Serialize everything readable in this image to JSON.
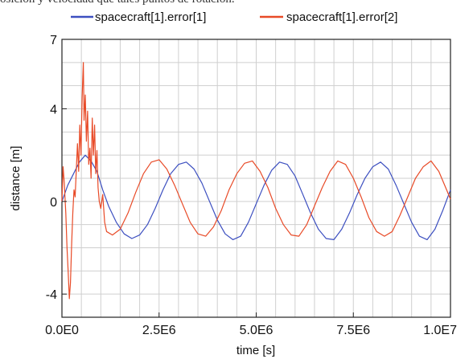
{
  "page_text": {
    "top_fragment": "osición y velocidad que tales puntos de rotación."
  },
  "chart_data": {
    "type": "line",
    "xlabel": "time [s]",
    "ylabel": "distance [m]",
    "xlim": [
      0,
      10000000
    ],
    "ylim": [
      -5,
      7
    ],
    "x_ticks": [
      {
        "value": 0,
        "label": "0.0E0"
      },
      {
        "value": 2500000,
        "label": "2.5E6"
      },
      {
        "value": 5000000,
        "label": "5.0E6"
      },
      {
        "value": 7500000,
        "label": "7.5E6"
      },
      {
        "value": 10000000,
        "label": "1.0E7"
      }
    ],
    "y_ticks": [
      {
        "value": -4,
        "label": "-4"
      },
      {
        "value": 0,
        "label": "0"
      },
      {
        "value": 4,
        "label": "4"
      },
      {
        "value": 7,
        "label": "7"
      }
    ],
    "grid": true,
    "grid_x_step": 500000,
    "grid_y_step": 1,
    "legend_position": "top",
    "series": [
      {
        "name": "spacecraft[1].error[1]",
        "color": "#3c4fc0",
        "points": [
          [
            0,
            0.0
          ],
          [
            150000,
            0.7
          ],
          [
            300000,
            1.2
          ],
          [
            450000,
            1.7
          ],
          [
            600000,
            2.0
          ],
          [
            750000,
            1.75
          ],
          [
            900000,
            1.3
          ],
          [
            1050000,
            0.5
          ],
          [
            1200000,
            -0.2
          ],
          [
            1400000,
            -0.9
          ],
          [
            1600000,
            -1.4
          ],
          [
            1800000,
            -1.6
          ],
          [
            2000000,
            -1.45
          ],
          [
            2200000,
            -1.0
          ],
          [
            2400000,
            -0.3
          ],
          [
            2600000,
            0.5
          ],
          [
            2800000,
            1.2
          ],
          [
            3000000,
            1.6
          ],
          [
            3200000,
            1.7
          ],
          [
            3400000,
            1.4
          ],
          [
            3600000,
            0.8
          ],
          [
            3800000,
            0.0
          ],
          [
            4000000,
            -0.8
          ],
          [
            4200000,
            -1.4
          ],
          [
            4400000,
            -1.65
          ],
          [
            4600000,
            -1.5
          ],
          [
            4800000,
            -0.9
          ],
          [
            5000000,
            -0.1
          ],
          [
            5200000,
            0.7
          ],
          [
            5400000,
            1.35
          ],
          [
            5600000,
            1.7
          ],
          [
            5800000,
            1.6
          ],
          [
            6000000,
            1.1
          ],
          [
            6200000,
            0.3
          ],
          [
            6400000,
            -0.5
          ],
          [
            6600000,
            -1.2
          ],
          [
            6800000,
            -1.6
          ],
          [
            7000000,
            -1.65
          ],
          [
            7200000,
            -1.2
          ],
          [
            7400000,
            -0.5
          ],
          [
            7600000,
            0.3
          ],
          [
            7800000,
            1.0
          ],
          [
            8000000,
            1.5
          ],
          [
            8200000,
            1.7
          ],
          [
            8400000,
            1.4
          ],
          [
            8600000,
            0.7
          ],
          [
            8800000,
            -0.1
          ],
          [
            9000000,
            -0.9
          ],
          [
            9200000,
            -1.5
          ],
          [
            9400000,
            -1.65
          ],
          [
            9600000,
            -1.2
          ],
          [
            9800000,
            -0.4
          ],
          [
            10000000,
            0.5
          ]
        ]
      },
      {
        "name": "spacecraft[1].error[2]",
        "color": "#e84a27",
        "points": [
          [
            0,
            0.0
          ],
          [
            30000,
            1.5
          ],
          [
            60000,
            0.8
          ],
          [
            100000,
            -0.5
          ],
          [
            130000,
            -2.0
          ],
          [
            160000,
            -3.0
          ],
          [
            190000,
            -4.2
          ],
          [
            220000,
            -3.5
          ],
          [
            250000,
            -1.8
          ],
          [
            280000,
            -0.5
          ],
          [
            310000,
            0.5
          ],
          [
            340000,
            0.2
          ],
          [
            370000,
            1.4
          ],
          [
            400000,
            2.5
          ],
          [
            430000,
            1.3
          ],
          [
            460000,
            3.3
          ],
          [
            490000,
            2.0
          ],
          [
            520000,
            4.5
          ],
          [
            550000,
            6.0
          ],
          [
            570000,
            3.5
          ],
          [
            600000,
            4.6
          ],
          [
            630000,
            2.6
          ],
          [
            660000,
            3.9
          ],
          [
            690000,
            1.6
          ],
          [
            720000,
            2.3
          ],
          [
            750000,
            1.0
          ],
          [
            780000,
            3.6
          ],
          [
            810000,
            2.0
          ],
          [
            840000,
            3.3
          ],
          [
            870000,
            1.2
          ],
          [
            900000,
            2.2
          ],
          [
            930000,
            0.6
          ],
          [
            960000,
            0.0
          ],
          [
            1000000,
            -0.3
          ],
          [
            1050000,
            0.3
          ],
          [
            1100000,
            -0.9
          ],
          [
            1150000,
            -1.3
          ],
          [
            1300000,
            -1.45
          ],
          [
            1500000,
            -1.2
          ],
          [
            1700000,
            -0.5
          ],
          [
            1900000,
            0.4
          ],
          [
            2100000,
            1.2
          ],
          [
            2300000,
            1.7
          ],
          [
            2500000,
            1.8
          ],
          [
            2700000,
            1.4
          ],
          [
            2900000,
            0.7
          ],
          [
            3100000,
            -0.1
          ],
          [
            3300000,
            -0.9
          ],
          [
            3500000,
            -1.4
          ],
          [
            3700000,
            -1.5
          ],
          [
            3900000,
            -1.1
          ],
          [
            4100000,
            -0.4
          ],
          [
            4300000,
            0.5
          ],
          [
            4500000,
            1.2
          ],
          [
            4700000,
            1.65
          ],
          [
            4900000,
            1.75
          ],
          [
            5100000,
            1.3
          ],
          [
            5300000,
            0.6
          ],
          [
            5500000,
            -0.3
          ],
          [
            5700000,
            -1.0
          ],
          [
            5900000,
            -1.45
          ],
          [
            6100000,
            -1.5
          ],
          [
            6300000,
            -1.0
          ],
          [
            6500000,
            -0.2
          ],
          [
            6700000,
            0.6
          ],
          [
            6900000,
            1.3
          ],
          [
            7100000,
            1.75
          ],
          [
            7300000,
            1.6
          ],
          [
            7500000,
            1.0
          ],
          [
            7700000,
            0.2
          ],
          [
            7900000,
            -0.7
          ],
          [
            8100000,
            -1.3
          ],
          [
            8300000,
            -1.5
          ],
          [
            8500000,
            -1.3
          ],
          [
            8700000,
            -0.6
          ],
          [
            8900000,
            0.2
          ],
          [
            9100000,
            1.0
          ],
          [
            9300000,
            1.5
          ],
          [
            9500000,
            1.75
          ],
          [
            9700000,
            1.3
          ],
          [
            9900000,
            0.5
          ],
          [
            10000000,
            0.1
          ]
        ]
      }
    ]
  }
}
